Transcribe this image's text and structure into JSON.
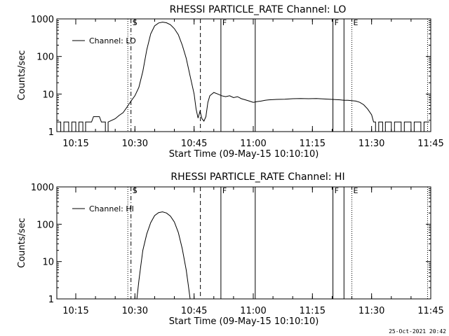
{
  "footer_timestamp": "25-Oct-2021 20:42",
  "chart_data": [
    {
      "type": "line",
      "title": "RHESSI PARTICLE_RATE Channel: LO",
      "xlabel": "Start Time (09-May-15 10:10:10)",
      "ylabel": "Counts/sec",
      "yscale": "log",
      "ylim": [
        1,
        1000
      ],
      "xlim_minutes": [
        10.2,
        105.0
      ],
      "xticks": [
        {
          "label": "10:15",
          "t": 15
        },
        {
          "label": "10:30",
          "t": 30
        },
        {
          "label": "10:45",
          "t": 45
        },
        {
          "label": "11:00",
          "t": 60
        },
        {
          "label": "11:15",
          "t": 75
        },
        {
          "label": "11:30",
          "t": 90
        },
        {
          "label": "11:45",
          "t": 105
        }
      ],
      "yticks": [
        {
          "label": "1",
          "v": 1
        },
        {
          "label": "10",
          "v": 10
        },
        {
          "label": "100",
          "v": 100
        },
        {
          "label": "1000",
          "v": 1000
        }
      ],
      "legend": {
        "label": "Channel: LO",
        "position": "top-left"
      },
      "markers": [
        {
          "t": 28.2,
          "style": "dotted",
          "label": ""
        },
        {
          "t": 29.0,
          "style": "dashdot",
          "label": "S"
        },
        {
          "t": 46.6,
          "style": "dashed",
          "label": ""
        },
        {
          "t": 51.8,
          "style": "solid",
          "label": "F"
        },
        {
          "t": 60.5,
          "style": "solid",
          "label": ""
        },
        {
          "t": 80.2,
          "style": "solid",
          "label": "F"
        },
        {
          "t": 83.0,
          "style": "solid",
          "label": ""
        },
        {
          "t": 85.0,
          "style": "dotted",
          "label": "E"
        },
        {
          "t": 104.2,
          "style": "dotted",
          "label": ""
        }
      ],
      "series": [
        {
          "name": "",
          "points": [
            [
              10.3,
              1.8
            ],
            [
              11.2,
              1.8
            ],
            [
              11.2,
              1
            ],
            [
              12.0,
              1
            ],
            [
              12.0,
              1.8
            ],
            [
              13.2,
              1.8
            ],
            [
              13.2,
              1
            ],
            [
              14.0,
              1
            ],
            [
              14.0,
              1.8
            ],
            [
              15.0,
              1.8
            ],
            [
              15.0,
              1
            ],
            [
              15.8,
              1
            ],
            [
              15.8,
              1.8
            ],
            [
              16.8,
              1.8
            ],
            [
              16.8,
              1
            ],
            [
              17.5,
              1
            ],
            [
              17.5,
              1.8
            ],
            [
              19.0,
              1.8
            ],
            [
              19.5,
              2.5
            ],
            [
              21.0,
              2.5
            ],
            [
              21.5,
              1.8
            ],
            [
              22.5,
              1.8
            ],
            [
              22.5,
              1
            ],
            [
              23.2,
              1
            ],
            [
              23.2,
              1.8
            ],
            [
              25.0,
              2.2
            ],
            [
              26.0,
              2.7
            ],
            [
              27.0,
              3.2
            ],
            [
              28.0,
              4.5
            ],
            [
              29.0,
              6.5
            ],
            [
              30.0,
              9
            ],
            [
              31.0,
              15
            ],
            [
              32.0,
              40
            ],
            [
              33.0,
              150
            ],
            [
              34.0,
              400
            ],
            [
              35.0,
              650
            ],
            [
              36.0,
              780
            ],
            [
              37.0,
              820
            ],
            [
              38.0,
              790
            ],
            [
              39.0,
              700
            ],
            [
              40.0,
              550
            ],
            [
              41.0,
              380
            ],
            [
              42.0,
              200
            ],
            [
              43.0,
              90
            ],
            [
              44.0,
              30
            ],
            [
              45.0,
              10
            ],
            [
              45.5,
              4
            ],
            [
              46.0,
              2.3
            ],
            [
              46.5,
              3.5
            ],
            [
              47.0,
              2.2
            ],
            [
              47.5,
              1.9
            ],
            [
              48.0,
              2.5
            ],
            [
              48.5,
              6
            ],
            [
              49.0,
              9
            ],
            [
              50.0,
              11
            ],
            [
              51.0,
              10
            ],
            [
              52.0,
              9
            ],
            [
              53.0,
              8.5
            ],
            [
              54.0,
              9
            ],
            [
              55.0,
              8
            ],
            [
              56.0,
              8.5
            ],
            [
              57.0,
              7.5
            ],
            [
              58.0,
              7
            ],
            [
              59.0,
              6.5
            ],
            [
              60.0,
              6
            ],
            [
              61.0,
              6.3
            ],
            [
              62.0,
              6.5
            ],
            [
              63.0,
              6.8
            ],
            [
              64.0,
              7
            ],
            [
              66.0,
              7.2
            ],
            [
              68.0,
              7.3
            ],
            [
              70.0,
              7.5
            ],
            [
              72.0,
              7.6
            ],
            [
              74.0,
              7.5
            ],
            [
              76.0,
              7.6
            ],
            [
              78.0,
              7.4
            ],
            [
              80.0,
              7.2
            ],
            [
              82.0,
              7
            ],
            [
              83.0,
              6.8
            ],
            [
              84.0,
              6.8
            ],
            [
              86.0,
              6.5
            ],
            [
              87.0,
              6
            ],
            [
              88.0,
              5.2
            ],
            [
              89.0,
              4
            ],
            [
              90.0,
              2.8
            ],
            [
              90.5,
              1.8
            ],
            [
              91.0,
              1.8
            ],
            [
              91.0,
              1
            ],
            [
              91.8,
              1
            ],
            [
              91.8,
              1.8
            ],
            [
              92.8,
              1.8
            ],
            [
              92.8,
              1
            ],
            [
              93.5,
              1
            ],
            [
              93.5,
              1.8
            ],
            [
              95.0,
              1.8
            ],
            [
              95.0,
              1
            ],
            [
              95.8,
              1
            ],
            [
              95.8,
              1.8
            ],
            [
              97.5,
              1.8
            ],
            [
              97.5,
              1
            ],
            [
              98.3,
              1
            ],
            [
              98.3,
              1.8
            ],
            [
              100.0,
              1.8
            ],
            [
              100.0,
              1
            ],
            [
              100.8,
              1
            ],
            [
              100.8,
              1.8
            ],
            [
              102.5,
              1.8
            ],
            [
              102.5,
              1
            ],
            [
              103.3,
              1
            ],
            [
              103.3,
              1.8
            ],
            [
              104.6,
              1.8
            ]
          ]
        }
      ]
    },
    {
      "type": "line",
      "title": "RHESSI PARTICLE_RATE Channel: HI",
      "xlabel": "Start Time (09-May-15 10:10:10)",
      "ylabel": "Counts/sec",
      "yscale": "log",
      "ylim": [
        1,
        1000
      ],
      "xlim_minutes": [
        10.2,
        105.0
      ],
      "xticks": [
        {
          "label": "10:15",
          "t": 15
        },
        {
          "label": "10:30",
          "t": 30
        },
        {
          "label": "10:45",
          "t": 45
        },
        {
          "label": "11:00",
          "t": 60
        },
        {
          "label": "11:15",
          "t": 75
        },
        {
          "label": "11:30",
          "t": 90
        },
        {
          "label": "11:45",
          "t": 105
        }
      ],
      "yticks": [
        {
          "label": "1",
          "v": 1
        },
        {
          "label": "10",
          "v": 10
        },
        {
          "label": "100",
          "v": 100
        },
        {
          "label": "1000",
          "v": 1000
        }
      ],
      "legend": {
        "label": "Channel: HI",
        "position": "top-left"
      },
      "markers": [
        {
          "t": 28.2,
          "style": "dotted",
          "label": ""
        },
        {
          "t": 29.0,
          "style": "dashdot",
          "label": "S"
        },
        {
          "t": 46.6,
          "style": "dashed",
          "label": ""
        },
        {
          "t": 51.8,
          "style": "solid",
          "label": "F"
        },
        {
          "t": 60.5,
          "style": "solid",
          "label": ""
        },
        {
          "t": 80.2,
          "style": "solid",
          "label": "F"
        },
        {
          "t": 83.0,
          "style": "solid",
          "label": ""
        },
        {
          "t": 85.0,
          "style": "dotted",
          "label": "E"
        },
        {
          "t": 104.2,
          "style": "dotted",
          "label": ""
        }
      ],
      "series": [
        {
          "name": "",
          "points": [
            [
              30.5,
              1
            ],
            [
              31.0,
              3
            ],
            [
              31.5,
              8
            ],
            [
              32.0,
              20
            ],
            [
              33.0,
              55
            ],
            [
              34.0,
              110
            ],
            [
              35.0,
              170
            ],
            [
              36.0,
              205
            ],
            [
              37.0,
              215
            ],
            [
              38.0,
              200
            ],
            [
              39.0,
              165
            ],
            [
              40.0,
              115
            ],
            [
              41.0,
              60
            ],
            [
              42.0,
              22
            ],
            [
              43.0,
              6
            ],
            [
              43.5,
              2.5
            ],
            [
              44.0,
              1
            ]
          ]
        }
      ]
    }
  ]
}
